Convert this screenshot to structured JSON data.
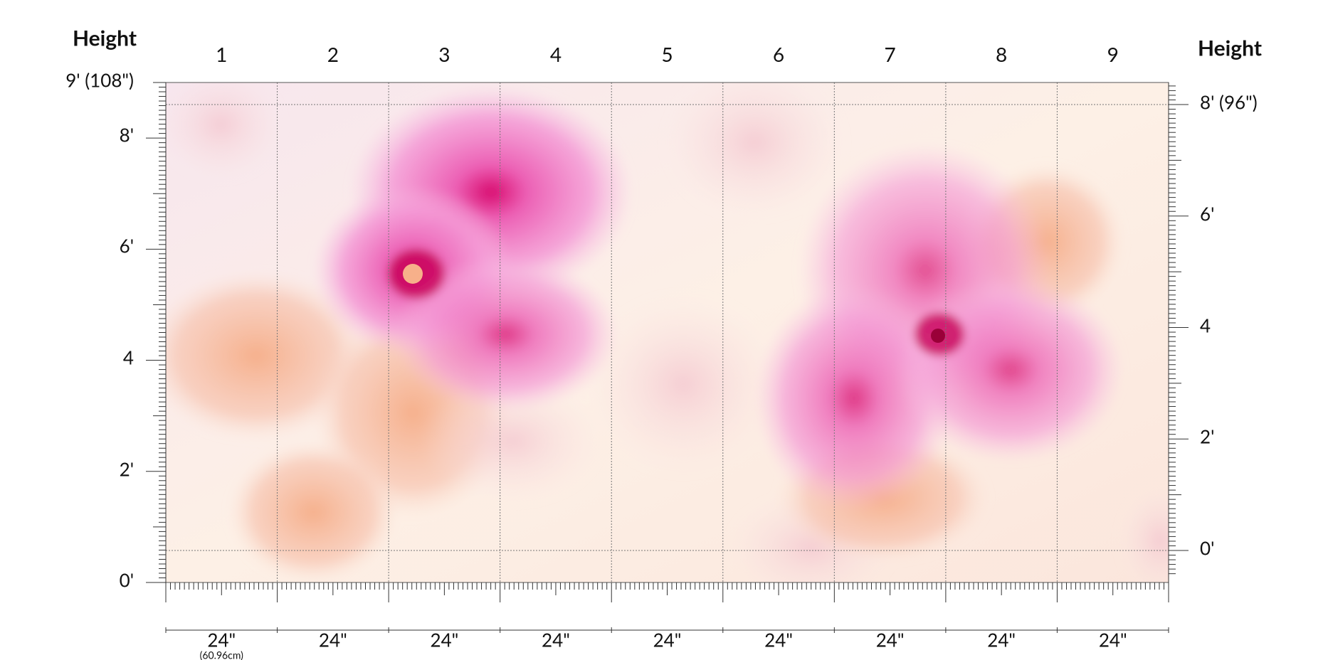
{
  "left_axis": {
    "title": "Height",
    "labels": [
      "9' (108\")",
      "8'",
      "6'",
      "4",
      "2'",
      "0'"
    ]
  },
  "right_axis": {
    "title": "Height",
    "labels": [
      "8' (96\")",
      "6'",
      "4",
      "2'",
      "0'"
    ]
  },
  "panels": {
    "numbers": [
      "1",
      "2",
      "3",
      "4",
      "5",
      "6",
      "7",
      "8",
      "9"
    ],
    "widths": [
      "24\"",
      "24\"",
      "24\"",
      "24\"",
      "24\"",
      "24\"",
      "24\"",
      "24\"",
      "24\""
    ]
  },
  "width_note": "(60.96cm)"
}
